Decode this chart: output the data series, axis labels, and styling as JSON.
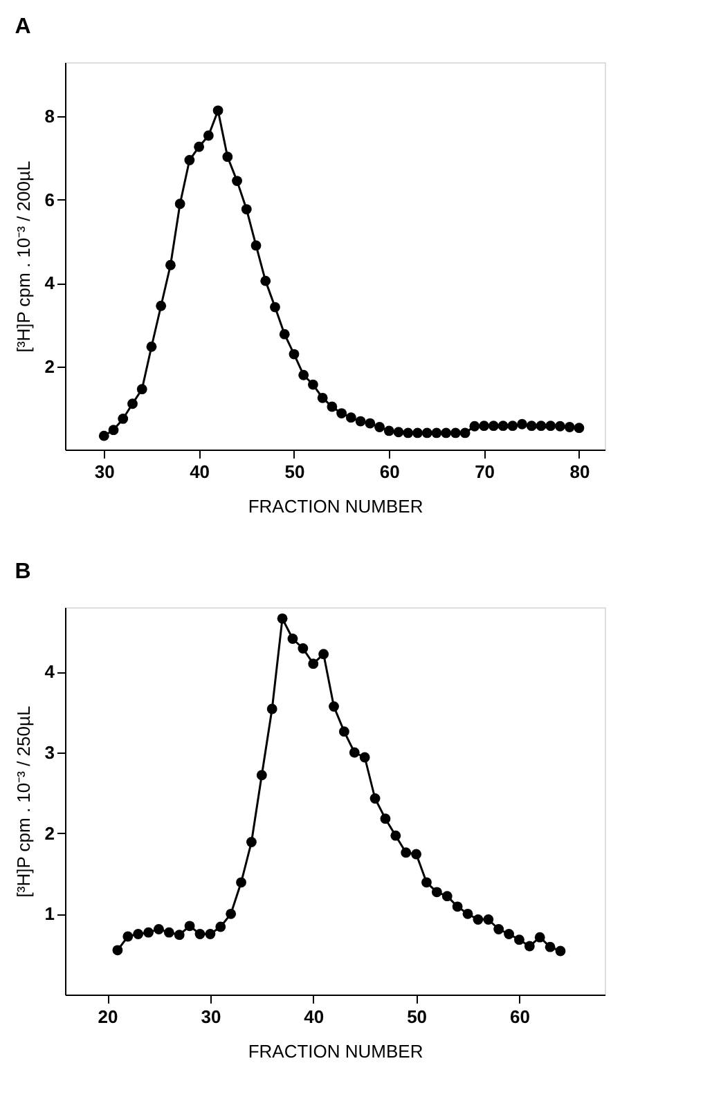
{
  "chart_data": [
    {
      "type": "line",
      "title": "A",
      "xlabel": "FRACTION   NUMBER",
      "ylabel": "[³H]P cpm . 10⁻³ / 200µL",
      "x": [
        30,
        31,
        32,
        33,
        34,
        35,
        36,
        37,
        38,
        39,
        40,
        41,
        42,
        43,
        44,
        45,
        46,
        47,
        48,
        49,
        50,
        51,
        52,
        53,
        54,
        55,
        56,
        57,
        58,
        59,
        60,
        61,
        62,
        63,
        64,
        65,
        66,
        67,
        68,
        69,
        70,
        71,
        72,
        73,
        74,
        75,
        76,
        77,
        78,
        79,
        80
      ],
      "series": [
        {
          "color": "#000000",
          "values": [
            0.33,
            0.47,
            0.74,
            1.1,
            1.45,
            2.47,
            3.45,
            4.43,
            5.9,
            6.95,
            7.27,
            7.54,
            8.14,
            7.03,
            6.45,
            5.77,
            4.9,
            4.05,
            3.42,
            2.77,
            2.29,
            1.79,
            1.56,
            1.24,
            1.03,
            0.87,
            0.77,
            0.68,
            0.63,
            0.54,
            0.45,
            0.42,
            0.4,
            0.4,
            0.4,
            0.4,
            0.4,
            0.4,
            0.4,
            0.56,
            0.57,
            0.57,
            0.57,
            0.57,
            0.61,
            0.57,
            0.57,
            0.57,
            0.56,
            0.54,
            0.52
          ]
        }
      ],
      "xlim": [
        25.9,
        82.7
      ],
      "xticks": [
        30,
        40,
        50,
        60,
        70,
        80
      ],
      "ylim": [
        0,
        9.3
      ],
      "yticks": [
        2,
        4,
        6,
        8
      ],
      "marker": "circle",
      "line_style": "solid",
      "grid": false
    },
    {
      "type": "line",
      "title": "B",
      "xlabel": "FRACTION   NUMBER",
      "ylabel": "[³H]P cpm . 10⁻³ / 250µL",
      "x": [
        21,
        22,
        23,
        24,
        25,
        26,
        27,
        28,
        29,
        30,
        31,
        32,
        33,
        34,
        35,
        36,
        37,
        38,
        39,
        40,
        41,
        42,
        43,
        44,
        45,
        46,
        47,
        48,
        49,
        50,
        51,
        52,
        53,
        54,
        55,
        56,
        57,
        58,
        59,
        60,
        61,
        62,
        63,
        64
      ],
      "series": [
        {
          "color": "#000000",
          "values": [
            0.55,
            0.72,
            0.75,
            0.77,
            0.81,
            0.77,
            0.74,
            0.85,
            0.75,
            0.75,
            0.84,
            1.0,
            1.39,
            1.89,
            2.72,
            3.54,
            4.66,
            4.41,
            4.29,
            4.1,
            4.22,
            3.57,
            3.26,
            3.0,
            2.94,
            2.43,
            2.18,
            1.97,
            1.76,
            1.74,
            1.39,
            1.27,
            1.22,
            1.09,
            1.0,
            0.93,
            0.93,
            0.81,
            0.75,
            0.68,
            0.6,
            0.71,
            0.59,
            0.54
          ]
        }
      ],
      "xlim": [
        15.9,
        68.3
      ],
      "xticks": [
        20,
        30,
        40,
        50,
        60
      ],
      "ylim": [
        0,
        4.8
      ],
      "yticks": [
        1,
        2,
        3,
        4
      ],
      "marker": "circle",
      "line_style": "solid",
      "grid": false
    }
  ]
}
